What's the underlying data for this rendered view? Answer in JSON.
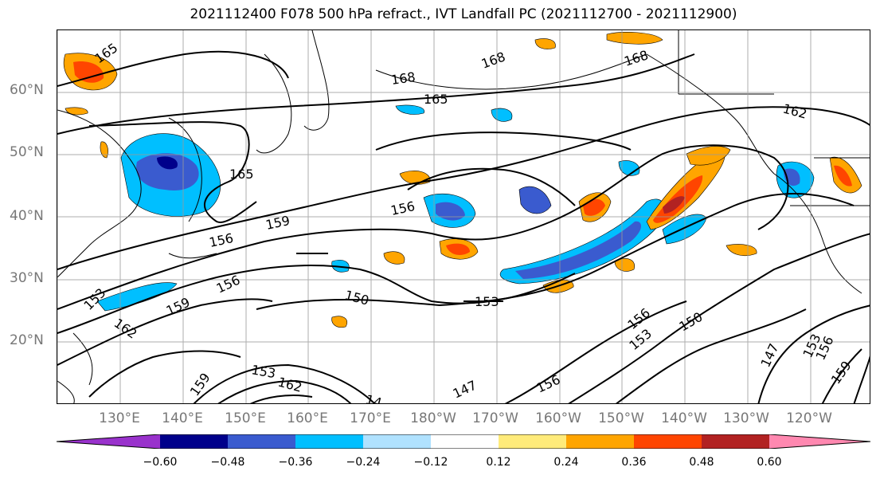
{
  "title": "2021112400 F078 500 hPa refract., IVT Landfall PC (2021112700 - 2021112900)",
  "lat_labels": [
    "60°N",
    "50°N",
    "40°N",
    "30°N",
    "20°N"
  ],
  "lon_labels": [
    "130°E",
    "140°E",
    "150°E",
    "160°E",
    "170°E",
    "180°W",
    "170°W",
    "160°W",
    "150°W",
    "140°W",
    "130°W",
    "120°W"
  ],
  "colorbar": {
    "ticks": [
      "−0.60",
      "−0.48",
      "−0.36",
      "−0.24",
      "−0.12",
      "0.12",
      "0.24",
      "0.36",
      "0.48",
      "0.60"
    ],
    "colors": [
      "#9932cc",
      "#00008b",
      "#3a5bcf",
      "#00bfff",
      "#b0e2ff",
      "#ffffff",
      "#ffeb7a",
      "#ffa500",
      "#ff4500",
      "#b22222",
      "#ff88b0"
    ]
  },
  "contour_labels": [
    "165",
    "168",
    "168",
    "168",
    "165",
    "162",
    "165",
    "159",
    "156",
    "156",
    "156",
    "153",
    "150",
    "153",
    "159",
    "162",
    "150",
    "156",
    "153",
    "147",
    "153",
    "156",
    "159",
    "147",
    "162",
    "153",
    "14",
    "156",
    "159"
  ],
  "colors": {
    "land_outline": "#000000",
    "grid": "#999999",
    "contour": "#000000"
  }
}
